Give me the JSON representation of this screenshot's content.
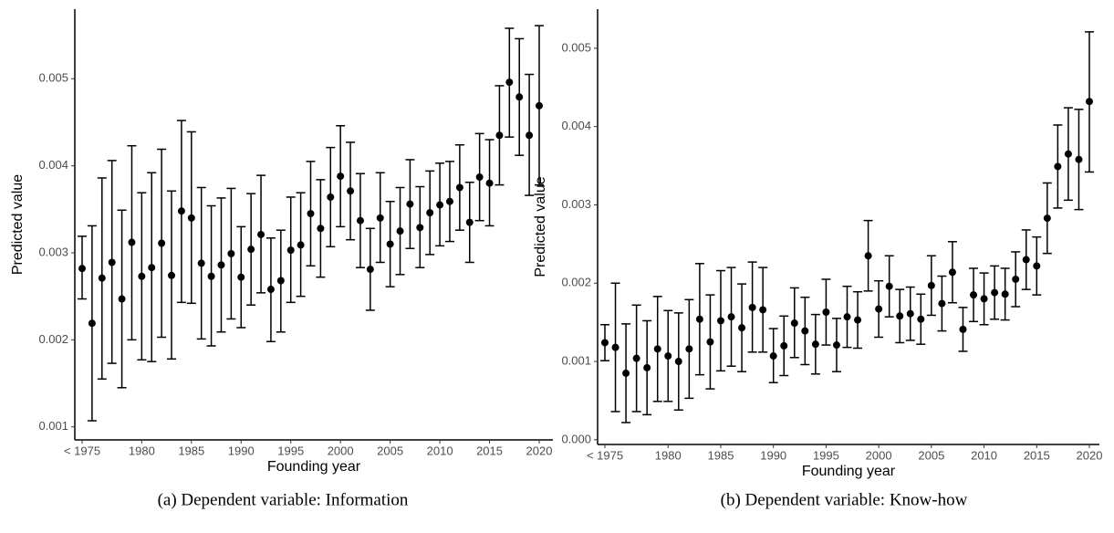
{
  "chart_data": [
    {
      "type": "errorbar",
      "caption": "(a) Dependent variable: Information",
      "xlabel": "Founding year",
      "ylabel": "Predicted value",
      "categories": [
        "< 1975",
        null,
        null,
        null,
        null,
        null,
        "1980",
        null,
        null,
        null,
        null,
        "1985",
        null,
        null,
        null,
        null,
        "1990",
        null,
        null,
        null,
        null,
        "1995",
        null,
        null,
        null,
        null,
        "2000",
        null,
        null,
        null,
        null,
        "2005",
        null,
        null,
        null,
        null,
        "2010",
        null,
        null,
        null,
        null,
        "2015",
        null,
        null,
        null,
        null,
        "2020"
      ],
      "values": [
        0.00282,
        0.00219,
        0.00271,
        0.00289,
        0.00247,
        0.00312,
        0.00273,
        0.00283,
        0.00311,
        0.00274,
        0.00348,
        0.0034,
        0.00288,
        0.00273,
        0.00286,
        0.00299,
        0.00272,
        0.00304,
        0.00321,
        0.00258,
        0.00268,
        0.00303,
        0.00309,
        0.00345,
        0.00328,
        0.00364,
        0.00388,
        0.00371,
        0.00337,
        0.00281,
        0.0034,
        0.0031,
        0.00325,
        0.00356,
        0.00329,
        0.00346,
        0.00355,
        0.00359,
        0.00375,
        0.00335,
        0.00387,
        0.0038,
        0.00435,
        0.00496,
        0.00479,
        0.00435,
        0.00469
      ],
      "lower": [
        0.00247,
        0.00107,
        0.00155,
        0.00173,
        0.00145,
        0.002,
        0.00177,
        0.00175,
        0.00203,
        0.00178,
        0.00243,
        0.00242,
        0.00201,
        0.00193,
        0.00209,
        0.00224,
        0.00214,
        0.0024,
        0.00254,
        0.00198,
        0.00209,
        0.00243,
        0.0025,
        0.00285,
        0.00272,
        0.00307,
        0.0033,
        0.00315,
        0.00283,
        0.00234,
        0.00289,
        0.00261,
        0.00275,
        0.00305,
        0.00283,
        0.00298,
        0.00308,
        0.00313,
        0.00326,
        0.00289,
        0.00337,
        0.00331,
        0.00378,
        0.00433,
        0.00412,
        0.00366,
        0.00378
      ],
      "upper": [
        0.00319,
        0.00331,
        0.00386,
        0.00406,
        0.00349,
        0.00423,
        0.00369,
        0.00392,
        0.00419,
        0.00371,
        0.00452,
        0.00439,
        0.00375,
        0.00354,
        0.00363,
        0.00374,
        0.0033,
        0.00368,
        0.00389,
        0.00317,
        0.00326,
        0.00364,
        0.00369,
        0.00405,
        0.00384,
        0.00421,
        0.00446,
        0.00427,
        0.00391,
        0.00328,
        0.00392,
        0.00359,
        0.00375,
        0.00407,
        0.00376,
        0.00394,
        0.00403,
        0.00405,
        0.00424,
        0.00381,
        0.00437,
        0.0043,
        0.00492,
        0.00558,
        0.00546,
        0.00505,
        0.00561
      ],
      "color": "#000000",
      "ylim": [
        0.00085,
        0.0058
      ],
      "yticks": [
        0.001,
        0.002,
        0.003,
        0.004,
        0.005
      ]
    },
    {
      "type": "errorbar",
      "caption": "(b) Dependent variable: Know-how",
      "xlabel": "Founding year",
      "ylabel": "Predicted value",
      "categories": [
        "< 1975",
        null,
        null,
        null,
        null,
        null,
        "1980",
        null,
        null,
        null,
        null,
        "1985",
        null,
        null,
        null,
        null,
        "1990",
        null,
        null,
        null,
        null,
        "1995",
        null,
        null,
        null,
        null,
        "2000",
        null,
        null,
        null,
        null,
        "2005",
        null,
        null,
        null,
        null,
        "2010",
        null,
        null,
        null,
        null,
        "2015",
        null,
        null,
        null,
        null,
        "2020"
      ],
      "values": [
        0.00124,
        0.00118,
        0.00085,
        0.00104,
        0.00092,
        0.00116,
        0.00107,
        0.001,
        0.00116,
        0.00154,
        0.00125,
        0.00152,
        0.00157,
        0.00143,
        0.00169,
        0.00166,
        0.00107,
        0.0012,
        0.00149,
        0.00139,
        0.00122,
        0.00163,
        0.00121,
        0.00157,
        0.00153,
        0.00235,
        0.00167,
        0.00196,
        0.00158,
        0.00161,
        0.00154,
        0.00197,
        0.00174,
        0.00214,
        0.00141,
        0.00185,
        0.0018,
        0.00188,
        0.00186,
        0.00205,
        0.0023,
        0.00222,
        0.00283,
        0.00349,
        0.00365,
        0.00358,
        0.00432
      ],
      "lower": [
        0.00101,
        0.00036,
        0.00022,
        0.00036,
        0.00032,
        0.00049,
        0.00049,
        0.00038,
        0.00053,
        0.00083,
        0.00065,
        0.00088,
        0.00094,
        0.00087,
        0.00112,
        0.00112,
        0.00073,
        0.00082,
        0.00105,
        0.00096,
        0.00084,
        0.00121,
        0.00087,
        0.00118,
        0.00117,
        0.0019,
        0.00131,
        0.00157,
        0.00124,
        0.00127,
        0.00122,
        0.00159,
        0.00139,
        0.00175,
        0.00113,
        0.00151,
        0.00147,
        0.00154,
        0.00153,
        0.0017,
        0.00192,
        0.00185,
        0.00238,
        0.00296,
        0.00306,
        0.00294,
        0.00342
      ],
      "upper": [
        0.00147,
        0.002,
        0.00148,
        0.00172,
        0.00152,
        0.00183,
        0.00165,
        0.00162,
        0.00179,
        0.00225,
        0.00185,
        0.00216,
        0.0022,
        0.00199,
        0.00227,
        0.0022,
        0.00142,
        0.00158,
        0.00194,
        0.00182,
        0.0016,
        0.00205,
        0.00155,
        0.00196,
        0.00189,
        0.0028,
        0.00203,
        0.00235,
        0.00192,
        0.00195,
        0.00186,
        0.00235,
        0.00209,
        0.00253,
        0.00169,
        0.00219,
        0.00213,
        0.00222,
        0.00219,
        0.0024,
        0.00268,
        0.00259,
        0.00328,
        0.00402,
        0.00424,
        0.00422,
        0.00521
      ],
      "color": "#000000",
      "ylim": [
        -6e-05,
        0.0055
      ],
      "yticks": [
        {
          "value": 0,
          "label": "0.000"
        },
        0.001,
        0.002,
        0.003,
        0.004,
        0.005
      ]
    }
  ]
}
